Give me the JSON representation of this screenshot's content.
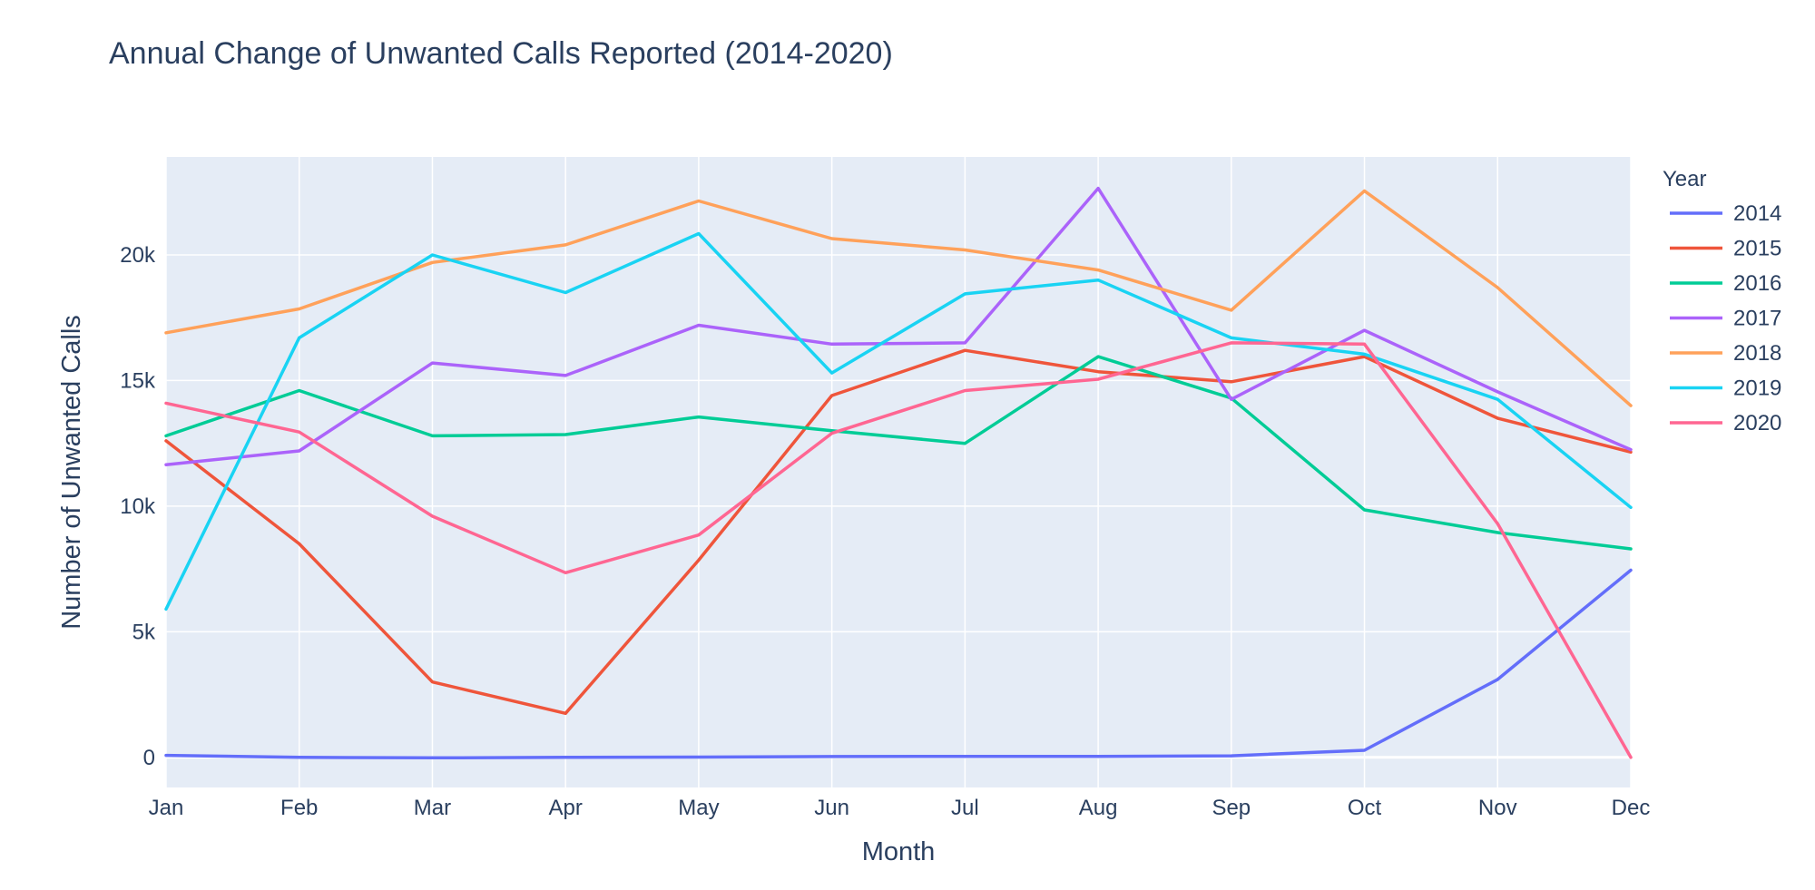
{
  "chart_data": {
    "type": "line",
    "title": "Annual Change of Unwanted Calls Reported (2014-2020)",
    "xlabel": "Month",
    "ylabel": "Number of Unwanted Calls",
    "categories": [
      "Jan",
      "Feb",
      "Mar",
      "Apr",
      "May",
      "Jun",
      "Jul",
      "Aug",
      "Sep",
      "Oct",
      "Nov",
      "Dec"
    ],
    "ylim": [
      -1200,
      23900
    ],
    "yticks": [
      0,
      5000,
      10000,
      15000,
      20000
    ],
    "ytick_labels": [
      "0",
      "5k",
      "10k",
      "15k",
      "20k"
    ],
    "grid": true,
    "legend_title": "Year",
    "legend_position": "right",
    "plot_bgcolor": "#e5ecf6",
    "series": [
      {
        "name": "2014",
        "color": "#636efa",
        "values": [
          80,
          0,
          -20,
          0,
          10,
          30,
          40,
          40,
          60,
          280,
          3100,
          7450
        ]
      },
      {
        "name": "2015",
        "color": "#ef553b",
        "values": [
          12600,
          8500,
          3000,
          1750,
          7850,
          14400,
          16200,
          15350,
          14950,
          15950,
          13500,
          12150
        ]
      },
      {
        "name": "2016",
        "color": "#00cc96",
        "values": [
          12800,
          14600,
          12800,
          12850,
          13550,
          13000,
          12500,
          15950,
          14300,
          9850,
          8950,
          8300
        ]
      },
      {
        "name": "2017",
        "color": "#ab63fa",
        "values": [
          11650,
          12200,
          15700,
          15200,
          17200,
          16450,
          16500,
          22650,
          14250,
          17000,
          14550,
          12250
        ]
      },
      {
        "name": "2018",
        "color": "#ffa15a",
        "values": [
          16900,
          17850,
          19700,
          20400,
          22150,
          20650,
          20200,
          19400,
          17800,
          22550,
          18700,
          14000
        ]
      },
      {
        "name": "2019",
        "color": "#19d3f3",
        "values": [
          5900,
          16700,
          20000,
          18500,
          20850,
          15300,
          18450,
          19000,
          16700,
          16050,
          14250,
          9950
        ]
      },
      {
        "name": "2020",
        "color": "#ff6692",
        "values": [
          14100,
          12950,
          9600,
          7350,
          8850,
          12900,
          14600,
          15050,
          16500,
          16450,
          9300,
          0
        ]
      }
    ]
  }
}
